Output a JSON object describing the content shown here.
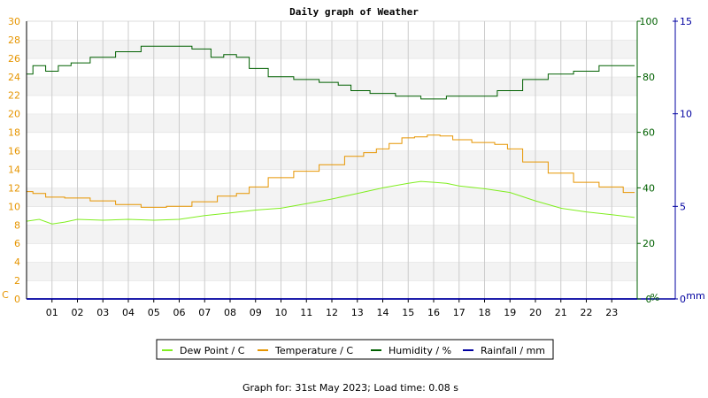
{
  "title": "Daily graph of Weather",
  "footer": "Graph for: 31st May 2023; Load time: 0.08 s",
  "units": {
    "left": "C",
    "right_humidity": "%",
    "right_rain": "mm"
  },
  "colors": {
    "dew_point": "#80ee20",
    "temperature": "#e69500",
    "humidity": "#006000",
    "rainfall": "#0000a0",
    "left_axis_text": "#e69500",
    "humidity_axis_text": "#006000",
    "rain_axis_text": "#0000a0"
  },
  "legend": [
    {
      "label": "Dew Point / C",
      "color": "#80ee20"
    },
    {
      "label": "Temperature / C",
      "color": "#e69500"
    },
    {
      "label": "Humidity / %",
      "color": "#006000"
    },
    {
      "label": "Rainfall / mm",
      "color": "#0000a0"
    }
  ],
  "chart_data": {
    "type": "line",
    "x_range": [
      0,
      24
    ],
    "x_tick_labels": [
      "01",
      "02",
      "03",
      "04",
      "05",
      "06",
      "07",
      "08",
      "09",
      "10",
      "11",
      "12",
      "13",
      "14",
      "15",
      "16",
      "17",
      "18",
      "19",
      "20",
      "21",
      "22",
      "23"
    ],
    "axes": {
      "left": {
        "label": "C",
        "range": [
          0,
          30
        ],
        "ticks": [
          "0",
          "2",
          "4",
          "6",
          "8",
          "10",
          "12",
          "14",
          "16",
          "18",
          "20",
          "22",
          "24",
          "26",
          "28",
          "30"
        ]
      },
      "right_humidity": {
        "label": "%",
        "range": [
          0,
          100
        ],
        "ticks": [
          "0",
          "20",
          "40",
          "60",
          "80",
          "100"
        ]
      },
      "right_rain": {
        "label": "mm",
        "range": [
          0,
          15
        ],
        "ticks": [
          "0",
          "5",
          "10",
          "15"
        ]
      }
    },
    "grid": true,
    "legend_position": "bottom",
    "series": [
      {
        "name": "Dew Point / C",
        "axis": "left",
        "x": [
          0,
          0.5,
          1,
          1.5,
          2,
          3,
          4,
          5,
          6,
          7,
          8,
          9,
          10,
          11,
          12,
          13,
          14,
          15,
          15.5,
          16,
          16.5,
          17,
          18,
          19,
          20,
          21,
          22,
          23,
          23.9
        ],
        "y": [
          8.4,
          8.6,
          8.1,
          8.3,
          8.6,
          8.5,
          8.6,
          8.5,
          8.6,
          9.0,
          9.3,
          9.6,
          9.8,
          10.3,
          10.8,
          11.4,
          12.0,
          12.5,
          12.7,
          12.6,
          12.5,
          12.2,
          11.9,
          11.5,
          10.6,
          9.8,
          9.4,
          9.1,
          8.8
        ]
      },
      {
        "name": "Temperature / C",
        "axis": "left",
        "x": [
          0,
          0.5,
          1,
          2,
          3,
          4,
          5,
          6,
          7,
          8,
          8.5,
          9,
          10,
          11,
          12,
          13,
          13.5,
          14,
          14.5,
          15,
          15.5,
          16,
          16.5,
          17,
          18,
          18.8,
          19,
          20,
          21,
          22,
          23,
          23.9
        ],
        "y": [
          11.6,
          11.4,
          11.0,
          10.9,
          10.6,
          10.2,
          9.9,
          10.0,
          10.5,
          11.1,
          11.4,
          12.1,
          13.1,
          13.8,
          14.5,
          15.4,
          15.8,
          16.2,
          16.8,
          17.4,
          17.5,
          17.7,
          17.6,
          17.2,
          16.9,
          16.7,
          16.2,
          14.8,
          13.6,
          12.6,
          12.1,
          11.5
        ],
        "step": true
      },
      {
        "name": "Humidity / %",
        "axis": "right_humidity",
        "x": [
          0,
          0.5,
          1,
          1.5,
          2,
          3,
          4,
          5,
          6,
          7,
          7.5,
          8,
          8.5,
          9,
          10,
          11,
          12,
          12.5,
          13,
          14,
          15,
          16,
          17,
          18,
          19,
          20,
          21,
          22,
          23,
          23.9
        ],
        "y": [
          81,
          84,
          82,
          84,
          85,
          87,
          89,
          91,
          91,
          90,
          87,
          88,
          87,
          83,
          80,
          79,
          78,
          77,
          75,
          74,
          73,
          72,
          73,
          73,
          75,
          79,
          81,
          82,
          84,
          84
        ],
        "step": true
      },
      {
        "name": "Rainfall / mm",
        "axis": "right_rain",
        "x": [
          0,
          24
        ],
        "y": [
          0,
          0
        ]
      }
    ]
  }
}
